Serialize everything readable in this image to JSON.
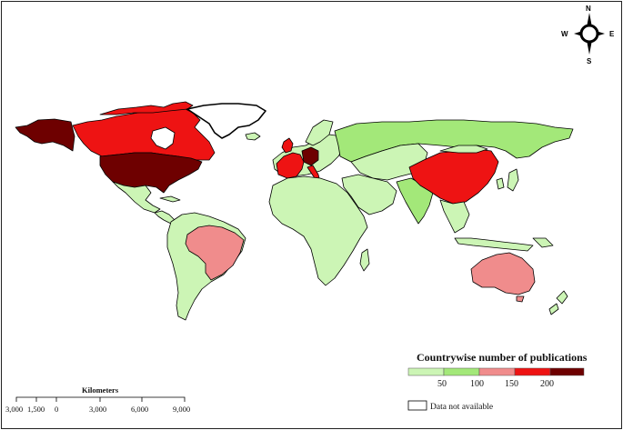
{
  "map": {
    "legend": {
      "title": "Countrywise number of publications",
      "scale_labels": [
        "50",
        "100",
        "150",
        "200"
      ],
      "classes": [
        {
          "range": "0–50",
          "color": "#ccf5b5"
        },
        {
          "range": "50–100",
          "color": "#a3e879"
        },
        {
          "range": "100–150",
          "color": "#f08c8c"
        },
        {
          "range": "150–200",
          "color": "#ee1313"
        },
        {
          "range": ">200",
          "color": "#6e0000"
        }
      ],
      "no_data_label": "Data not available",
      "no_data_color": "#ffffff"
    },
    "scale_bar": {
      "title": "Kilometers",
      "labels": [
        "3,000",
        "1,500",
        "0",
        "3,000",
        "6,000",
        "9,000"
      ]
    },
    "compass": {
      "north": "N",
      "south": "S",
      "east": "E",
      "west": "W",
      "icon": "compass-rose-icon"
    },
    "country_classes": {
      "United States": ">200",
      "Alaska (United States)": ">200",
      "Canada": "150–200",
      "China": "150–200",
      "Western Europe": "150–200",
      "Germany": ">200",
      "Brazil": "100–150",
      "Australia": "100–150",
      "Greenland": "no data",
      "Russia": "50–100",
      "India": "50–100"
    }
  }
}
